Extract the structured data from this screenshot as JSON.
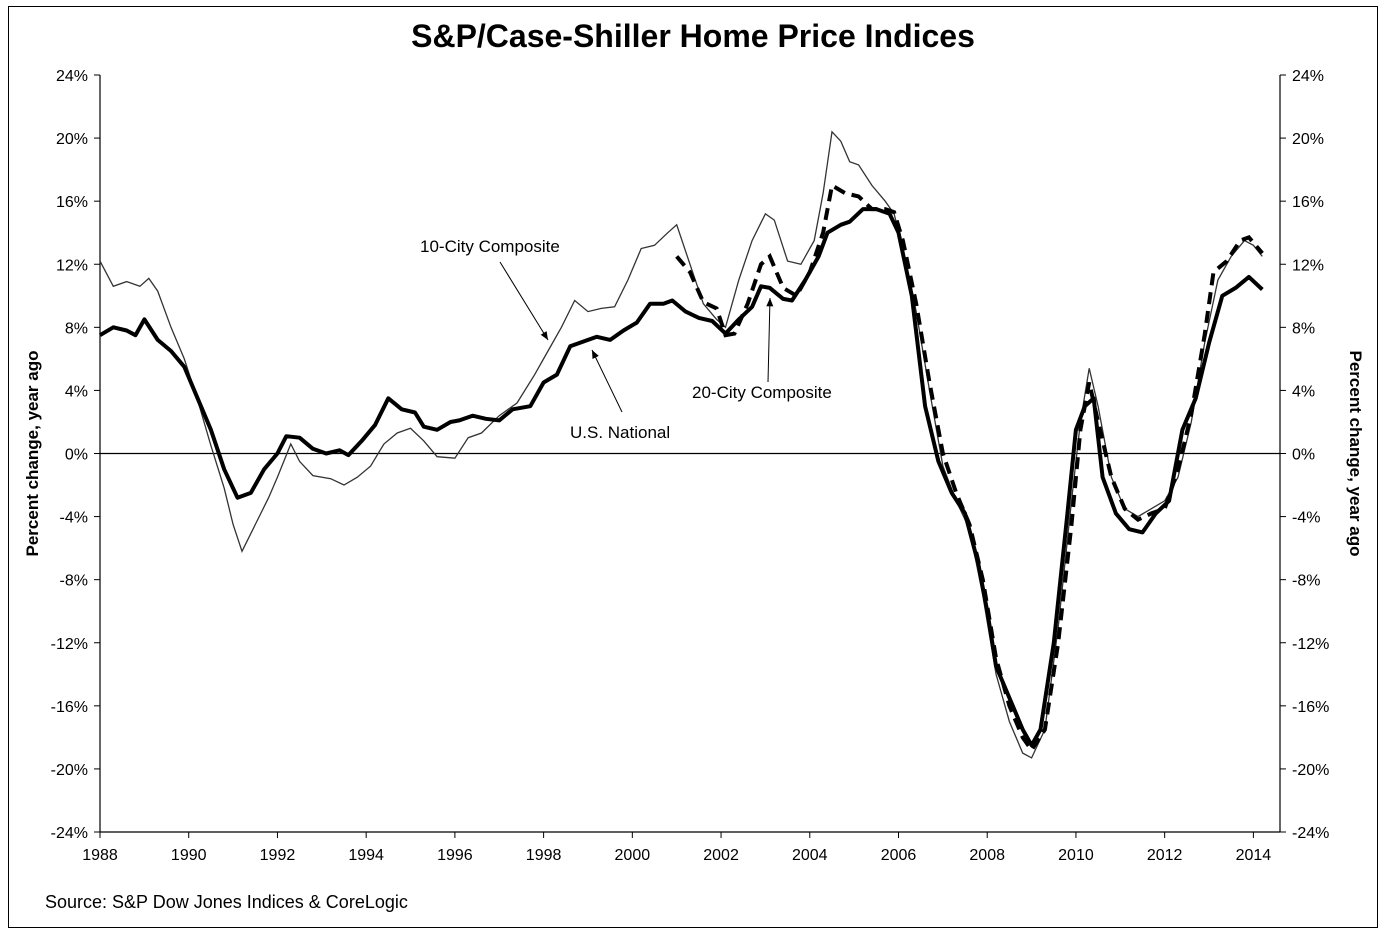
{
  "chart_data": {
    "type": "line",
    "title": "S&P/Case-Shiller Home Price Indices",
    "source": "Source: S&P Dow Jones Indices & CoreLogic",
    "ylabel_left": "Percent change, year ago",
    "ylabel_right": "Percent change, year ago",
    "ylim": [
      -24,
      24
    ],
    "xlim": [
      1988,
      2014.6
    ],
    "y_ticks": [
      "24%",
      "20%",
      "16%",
      "12%",
      "8%",
      "4%",
      "0%",
      "-4%",
      "-8%",
      "-12%",
      "-16%",
      "-20%",
      "-24%"
    ],
    "x_ticks": [
      "1988",
      "1990",
      "1992",
      "1994",
      "1996",
      "1998",
      "2000",
      "2002",
      "2004",
      "2006",
      "2008",
      "2010",
      "2012",
      "2014"
    ],
    "grid": false,
    "annotations": [
      {
        "text": "10-City Composite",
        "series": "10-City Composite"
      },
      {
        "text": "20-City Composite",
        "series": "20-City Composite"
      },
      {
        "text": "U.S. National",
        "series": "U.S. National"
      }
    ],
    "series": [
      {
        "name": "10-City Composite",
        "style": "thin",
        "points": [
          [
            1988.0,
            12.2
          ],
          [
            1988.3,
            10.6
          ],
          [
            1988.6,
            10.9
          ],
          [
            1988.9,
            10.6
          ],
          [
            1989.1,
            11.1
          ],
          [
            1989.3,
            10.3
          ],
          [
            1989.6,
            8.0
          ],
          [
            1989.9,
            6.0
          ],
          [
            1990.2,
            3.4
          ],
          [
            1990.5,
            0.5
          ],
          [
            1990.8,
            -2.2
          ],
          [
            1991.0,
            -4.5
          ],
          [
            1991.2,
            -6.2
          ],
          [
            1991.5,
            -4.5
          ],
          [
            1991.8,
            -2.8
          ],
          [
            1992.0,
            -1.5
          ],
          [
            1992.3,
            0.6
          ],
          [
            1992.5,
            -0.5
          ],
          [
            1992.8,
            -1.4
          ],
          [
            1993.2,
            -1.6
          ],
          [
            1993.5,
            -2.0
          ],
          [
            1993.8,
            -1.5
          ],
          [
            1994.1,
            -0.8
          ],
          [
            1994.4,
            0.6
          ],
          [
            1994.7,
            1.3
          ],
          [
            1995.0,
            1.6
          ],
          [
            1995.3,
            0.8
          ],
          [
            1995.6,
            -0.2
          ],
          [
            1996.0,
            -0.3
          ],
          [
            1996.3,
            1.0
          ],
          [
            1996.6,
            1.3
          ],
          [
            1997.0,
            2.4
          ],
          [
            1997.4,
            3.2
          ],
          [
            1997.8,
            5.0
          ],
          [
            1998.1,
            6.5
          ],
          [
            1998.4,
            8.0
          ],
          [
            1998.7,
            9.7
          ],
          [
            1999.0,
            9.0
          ],
          [
            1999.3,
            9.2
          ],
          [
            1999.6,
            9.3
          ],
          [
            1999.9,
            11.0
          ],
          [
            2000.2,
            13.0
          ],
          [
            2000.5,
            13.2
          ],
          [
            2000.8,
            14.0
          ],
          [
            2001.0,
            14.5
          ],
          [
            2001.3,
            12.0
          ],
          [
            2001.6,
            9.5
          ],
          [
            2001.9,
            8.5
          ],
          [
            2002.1,
            8.0
          ],
          [
            2002.4,
            11.0
          ],
          [
            2002.7,
            13.5
          ],
          [
            2003.0,
            15.2
          ],
          [
            2003.2,
            14.8
          ],
          [
            2003.5,
            12.2
          ],
          [
            2003.8,
            12.0
          ],
          [
            2004.1,
            13.5
          ],
          [
            2004.3,
            16.5
          ],
          [
            2004.5,
            20.4
          ],
          [
            2004.7,
            19.8
          ],
          [
            2004.9,
            18.5
          ],
          [
            2005.1,
            18.3
          ],
          [
            2005.4,
            17.0
          ],
          [
            2005.7,
            16.0
          ],
          [
            2005.9,
            15.2
          ],
          [
            2006.1,
            13.0
          ],
          [
            2006.4,
            9.0
          ],
          [
            2006.7,
            4.0
          ],
          [
            2007.0,
            -0.8
          ],
          [
            2007.3,
            -3.0
          ],
          [
            2007.6,
            -4.8
          ],
          [
            2007.9,
            -9.0
          ],
          [
            2008.2,
            -14.0
          ],
          [
            2008.5,
            -17.0
          ],
          [
            2008.8,
            -19.0
          ],
          [
            2009.0,
            -19.3
          ],
          [
            2009.3,
            -17.5
          ],
          [
            2009.6,
            -11.0
          ],
          [
            2009.9,
            -3.0
          ],
          [
            2010.1,
            2.0
          ],
          [
            2010.3,
            5.4
          ],
          [
            2010.5,
            3.0
          ],
          [
            2010.8,
            -1.5
          ],
          [
            2011.1,
            -3.5
          ],
          [
            2011.4,
            -4.0
          ],
          [
            2011.7,
            -3.5
          ],
          [
            2012.0,
            -3.0
          ],
          [
            2012.3,
            -1.5
          ],
          [
            2012.6,
            2.0
          ],
          [
            2012.9,
            7.0
          ],
          [
            2013.2,
            11.0
          ],
          [
            2013.5,
            12.5
          ],
          [
            2013.8,
            13.5
          ],
          [
            2014.0,
            13.2
          ],
          [
            2014.2,
            12.5
          ]
        ]
      },
      {
        "name": "20-City Composite",
        "style": "dashed",
        "points": [
          [
            2001.0,
            12.5
          ],
          [
            2001.3,
            11.5
          ],
          [
            2001.6,
            9.6
          ],
          [
            2001.9,
            9.2
          ],
          [
            2002.1,
            7.5
          ],
          [
            2002.3,
            7.6
          ],
          [
            2002.6,
            9.5
          ],
          [
            2002.9,
            12.0
          ],
          [
            2003.1,
            12.5
          ],
          [
            2003.4,
            10.5
          ],
          [
            2003.7,
            10.0
          ],
          [
            2004.0,
            11.5
          ],
          [
            2004.3,
            14.0
          ],
          [
            2004.5,
            17.0
          ],
          [
            2004.8,
            16.5
          ],
          [
            2005.1,
            16.3
          ],
          [
            2005.4,
            15.5
          ],
          [
            2005.7,
            15.5
          ],
          [
            2005.9,
            15.3
          ],
          [
            2006.1,
            13.5
          ],
          [
            2006.4,
            9.5
          ],
          [
            2006.7,
            4.5
          ],
          [
            2007.0,
            0.0
          ],
          [
            2007.3,
            -2.5
          ],
          [
            2007.6,
            -4.5
          ],
          [
            2007.9,
            -8.0
          ],
          [
            2008.2,
            -13.0
          ],
          [
            2008.5,
            -16.0
          ],
          [
            2008.8,
            -18.0
          ],
          [
            2009.0,
            -18.8
          ],
          [
            2009.3,
            -17.5
          ],
          [
            2009.6,
            -12.0
          ],
          [
            2009.9,
            -4.5
          ],
          [
            2010.1,
            1.5
          ],
          [
            2010.3,
            4.5
          ],
          [
            2010.5,
            2.0
          ],
          [
            2010.8,
            -1.5
          ],
          [
            2011.1,
            -3.5
          ],
          [
            2011.4,
            -4.2
          ],
          [
            2011.7,
            -3.8
          ],
          [
            2012.0,
            -3.5
          ],
          [
            2012.3,
            -1.0
          ],
          [
            2012.6,
            2.5
          ],
          [
            2012.9,
            7.5
          ],
          [
            2013.1,
            11.5
          ],
          [
            2013.4,
            12.2
          ],
          [
            2013.7,
            13.5
          ],
          [
            2013.9,
            13.7
          ],
          [
            2014.2,
            12.7
          ]
        ]
      },
      {
        "name": "U.S. National",
        "style": "thick",
        "points": [
          [
            1988.0,
            7.5
          ],
          [
            1988.3,
            8.0
          ],
          [
            1988.6,
            7.8
          ],
          [
            1988.8,
            7.5
          ],
          [
            1989.0,
            8.5
          ],
          [
            1989.3,
            7.2
          ],
          [
            1989.6,
            6.5
          ],
          [
            1989.9,
            5.5
          ],
          [
            1990.2,
            3.5
          ],
          [
            1990.5,
            1.5
          ],
          [
            1990.8,
            -1.0
          ],
          [
            1991.1,
            -2.8
          ],
          [
            1991.4,
            -2.5
          ],
          [
            1991.7,
            -1.0
          ],
          [
            1992.0,
            0.0
          ],
          [
            1992.2,
            1.1
          ],
          [
            1992.5,
            1.0
          ],
          [
            1992.8,
            0.3
          ],
          [
            1993.1,
            0.0
          ],
          [
            1993.4,
            0.2
          ],
          [
            1993.6,
            -0.1
          ],
          [
            1993.9,
            0.8
          ],
          [
            1994.2,
            1.8
          ],
          [
            1994.5,
            3.5
          ],
          [
            1994.8,
            2.8
          ],
          [
            1995.1,
            2.6
          ],
          [
            1995.3,
            1.7
          ],
          [
            1995.6,
            1.5
          ],
          [
            1995.9,
            2.0
          ],
          [
            1996.1,
            2.1
          ],
          [
            1996.4,
            2.4
          ],
          [
            1996.7,
            2.2
          ],
          [
            1997.0,
            2.1
          ],
          [
            1997.3,
            2.8
          ],
          [
            1997.7,
            3.0
          ],
          [
            1998.0,
            4.5
          ],
          [
            1998.3,
            5.0
          ],
          [
            1998.6,
            6.8
          ],
          [
            1998.9,
            7.1
          ],
          [
            1999.2,
            7.4
          ],
          [
            1999.5,
            7.2
          ],
          [
            1999.8,
            7.8
          ],
          [
            2000.1,
            8.3
          ],
          [
            2000.4,
            9.5
          ],
          [
            2000.7,
            9.5
          ],
          [
            2000.9,
            9.7
          ],
          [
            2001.2,
            9.0
          ],
          [
            2001.5,
            8.6
          ],
          [
            2001.8,
            8.4
          ],
          [
            2002.1,
            7.6
          ],
          [
            2002.4,
            8.5
          ],
          [
            2002.7,
            9.3
          ],
          [
            2002.9,
            10.6
          ],
          [
            2003.1,
            10.5
          ],
          [
            2003.4,
            9.8
          ],
          [
            2003.6,
            9.7
          ],
          [
            2003.9,
            11.0
          ],
          [
            2004.2,
            12.5
          ],
          [
            2004.4,
            14.0
          ],
          [
            2004.7,
            14.5
          ],
          [
            2004.9,
            14.7
          ],
          [
            2005.2,
            15.5
          ],
          [
            2005.5,
            15.5
          ],
          [
            2005.8,
            15.2
          ],
          [
            2006.0,
            14.0
          ],
          [
            2006.3,
            10.0
          ],
          [
            2006.6,
            3.0
          ],
          [
            2006.9,
            -0.5
          ],
          [
            2007.2,
            -2.5
          ],
          [
            2007.5,
            -3.8
          ],
          [
            2007.8,
            -7.0
          ],
          [
            2008.0,
            -10.0
          ],
          [
            2008.2,
            -13.5
          ],
          [
            2008.5,
            -15.5
          ],
          [
            2008.8,
            -17.5
          ],
          [
            2009.0,
            -18.5
          ],
          [
            2009.2,
            -17.5
          ],
          [
            2009.5,
            -12.0
          ],
          [
            2009.8,
            -4.0
          ],
          [
            2010.0,
            1.5
          ],
          [
            2010.2,
            3.0
          ],
          [
            2010.4,
            3.5
          ],
          [
            2010.6,
            -1.5
          ],
          [
            2010.9,
            -3.8
          ],
          [
            2011.2,
            -4.8
          ],
          [
            2011.5,
            -5.0
          ],
          [
            2011.8,
            -3.8
          ],
          [
            2012.1,
            -3.0
          ],
          [
            2012.4,
            1.5
          ],
          [
            2012.7,
            3.5
          ],
          [
            2013.0,
            7.0
          ],
          [
            2013.3,
            10.0
          ],
          [
            2013.6,
            10.5
          ],
          [
            2013.9,
            11.2
          ],
          [
            2014.2,
            10.4
          ]
        ]
      }
    ]
  }
}
